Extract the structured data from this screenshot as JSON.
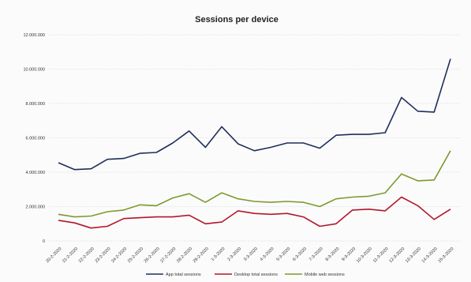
{
  "chart_data": {
    "type": "line",
    "title": "Sessions per device",
    "xlabel": "",
    "ylabel": "",
    "ylim": [
      0,
      12000000
    ],
    "yticks": [
      0,
      2000000,
      4000000,
      6000000,
      8000000,
      10000000,
      12000000
    ],
    "ytick_labels": [
      "0",
      "2.000.000",
      "4.000.000",
      "6.000.000",
      "8.000.000",
      "10.000.000",
      "12.000.000"
    ],
    "grid": true,
    "legend_position": "bottom",
    "categories": [
      "20-2-2020",
      "21-2-2020",
      "22-2-2020",
      "23-2-2020",
      "24-2-2020",
      "25-2-2020",
      "26-2-2020",
      "27-2-2020",
      "28-2-2020",
      "29-2-2020",
      "1-3-2020",
      "2-3-2020",
      "3-3-2020",
      "4-3-2020",
      "5-3-2020",
      "6-3-2020",
      "7-3-2020",
      "8-3-2020",
      "9-3-2020",
      "10-3-2020",
      "11-3-2020",
      "12-3-2020",
      "13-3-2020",
      "14-3-2020",
      "15-3-2020"
    ],
    "series": [
      {
        "name": "App total sessions",
        "color": "#1f2f5c",
        "values": [
          4550000,
          4150000,
          4200000,
          4750000,
          4800000,
          5100000,
          5150000,
          5700000,
          6400000,
          5450000,
          6650000,
          5650000,
          5250000,
          5450000,
          5700000,
          5700000,
          5400000,
          6150000,
          6200000,
          6200000,
          6300000,
          8350000,
          7550000,
          7500000,
          10600000
        ]
      },
      {
        "name": "Desktop total sessions",
        "color": "#b2182b",
        "values": [
          1200000,
          1050000,
          750000,
          850000,
          1300000,
          1350000,
          1400000,
          1400000,
          1500000,
          1000000,
          1100000,
          1750000,
          1600000,
          1550000,
          1600000,
          1400000,
          850000,
          1000000,
          1800000,
          1850000,
          1750000,
          2550000,
          2050000,
          1250000,
          1850000
        ]
      },
      {
        "name": "Mobile web sessions",
        "color": "#7d9a2e",
        "values": [
          1550000,
          1400000,
          1450000,
          1700000,
          1800000,
          2100000,
          2050000,
          2500000,
          2750000,
          2250000,
          2800000,
          2450000,
          2300000,
          2250000,
          2300000,
          2250000,
          2000000,
          2450000,
          2550000,
          2600000,
          2800000,
          3900000,
          3500000,
          3550000,
          5250000
        ]
      }
    ]
  }
}
